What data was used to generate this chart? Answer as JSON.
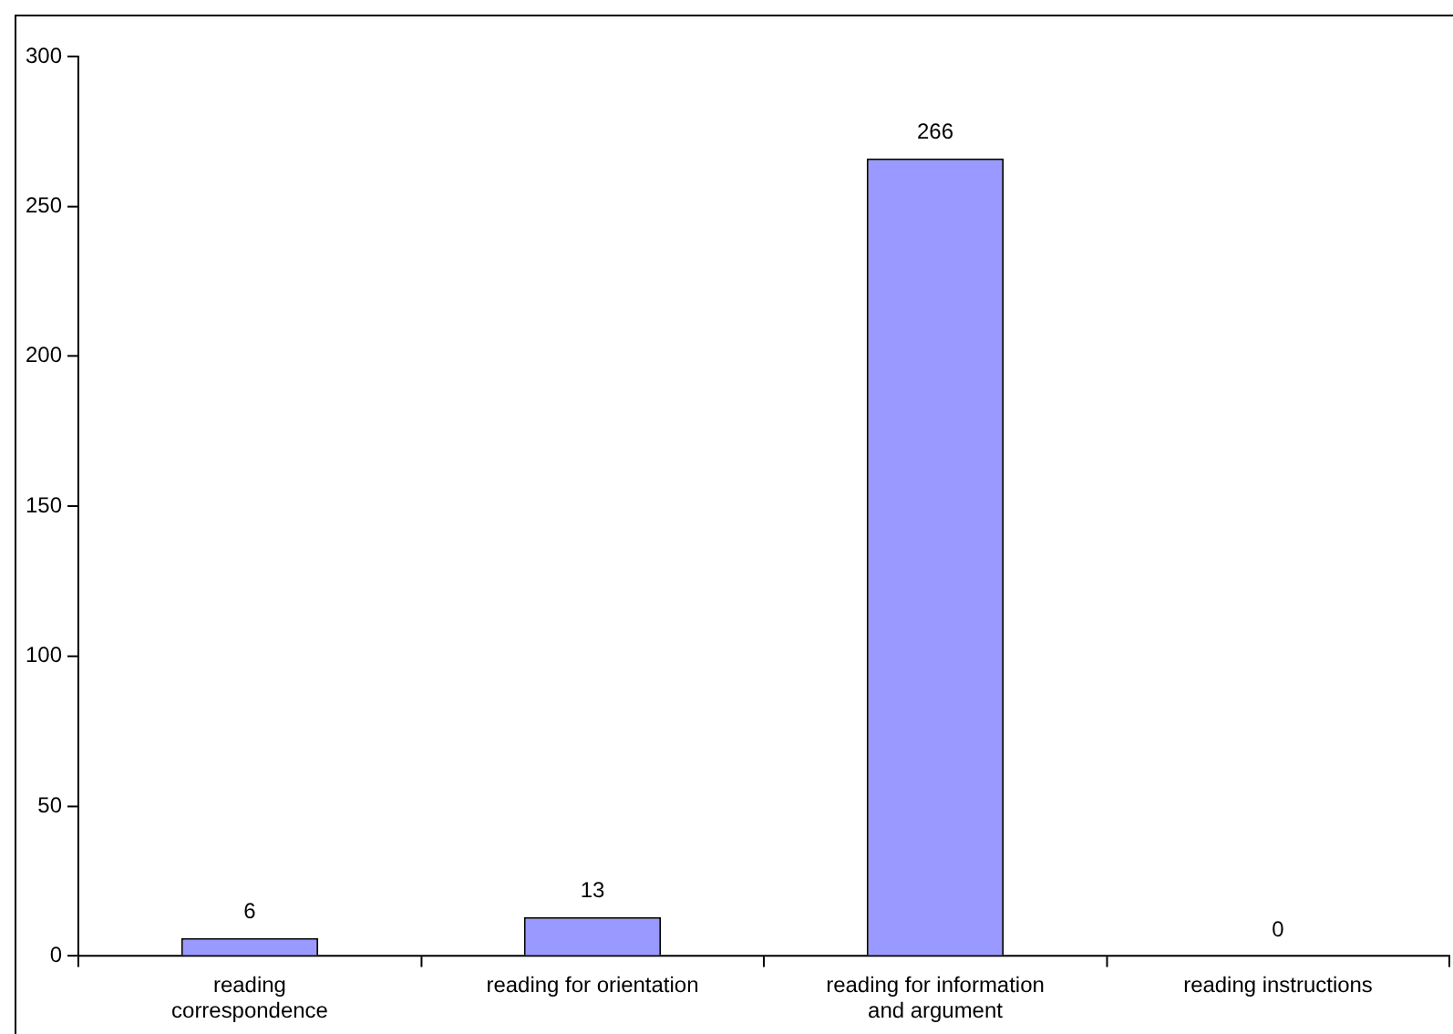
{
  "chart_data": {
    "type": "bar",
    "categories": [
      "reading correspondence",
      "reading for orientation",
      "reading for information and argument",
      "reading instructions"
    ],
    "values": [
      6,
      13,
      266,
      0
    ],
    "color": "#9999ff",
    "ylim": [
      0,
      300
    ],
    "yticks": [
      0,
      50,
      100,
      150,
      200,
      250,
      300
    ],
    "grid": false,
    "legend": false,
    "data_labels": true
  }
}
